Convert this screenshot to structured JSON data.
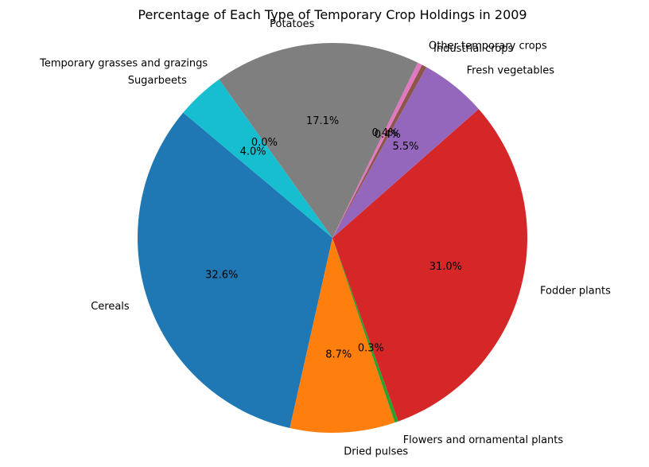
{
  "chart_data": {
    "type": "pie",
    "title": "Percentage of Each Type of Temporary Crop Holdings in 2009",
    "start_angle": 140,
    "direction": "counterclockwise",
    "slices": [
      {
        "label": "Cereals",
        "value": 32.6,
        "pct_label": "32.6%",
        "color": "#1f77b4"
      },
      {
        "label": "Dried pulses",
        "value": 8.7,
        "pct_label": "8.7%",
        "color": "#ff7f0e"
      },
      {
        "label": "Flowers and ornamental plants",
        "value": 0.3,
        "pct_label": "0.3%",
        "color": "#2ca02c"
      },
      {
        "label": "Fodder plants",
        "value": 31.0,
        "pct_label": "31.0%",
        "color": "#d62728"
      },
      {
        "label": "Fresh vegetables",
        "value": 5.5,
        "pct_label": "5.5%",
        "color": "#9467bd"
      },
      {
        "label": "Industrial crops",
        "value": 0.4,
        "pct_label": "0.4%",
        "color": "#8c564b"
      },
      {
        "label": "Other temporary crops",
        "value": 0.4,
        "pct_label": "0.4%",
        "color": "#e377c2"
      },
      {
        "label": "Potatoes",
        "value": 17.1,
        "pct_label": "17.1%",
        "color": "#7f7f7f"
      },
      {
        "label": "Temporary grasses and grazings",
        "value": 0.0,
        "pct_label": "0.0%",
        "color": "#bcbd22"
      },
      {
        "label": "Sugarbeets",
        "value": 4.0,
        "pct_label": "4.0%",
        "color": "#17becf"
      }
    ]
  }
}
